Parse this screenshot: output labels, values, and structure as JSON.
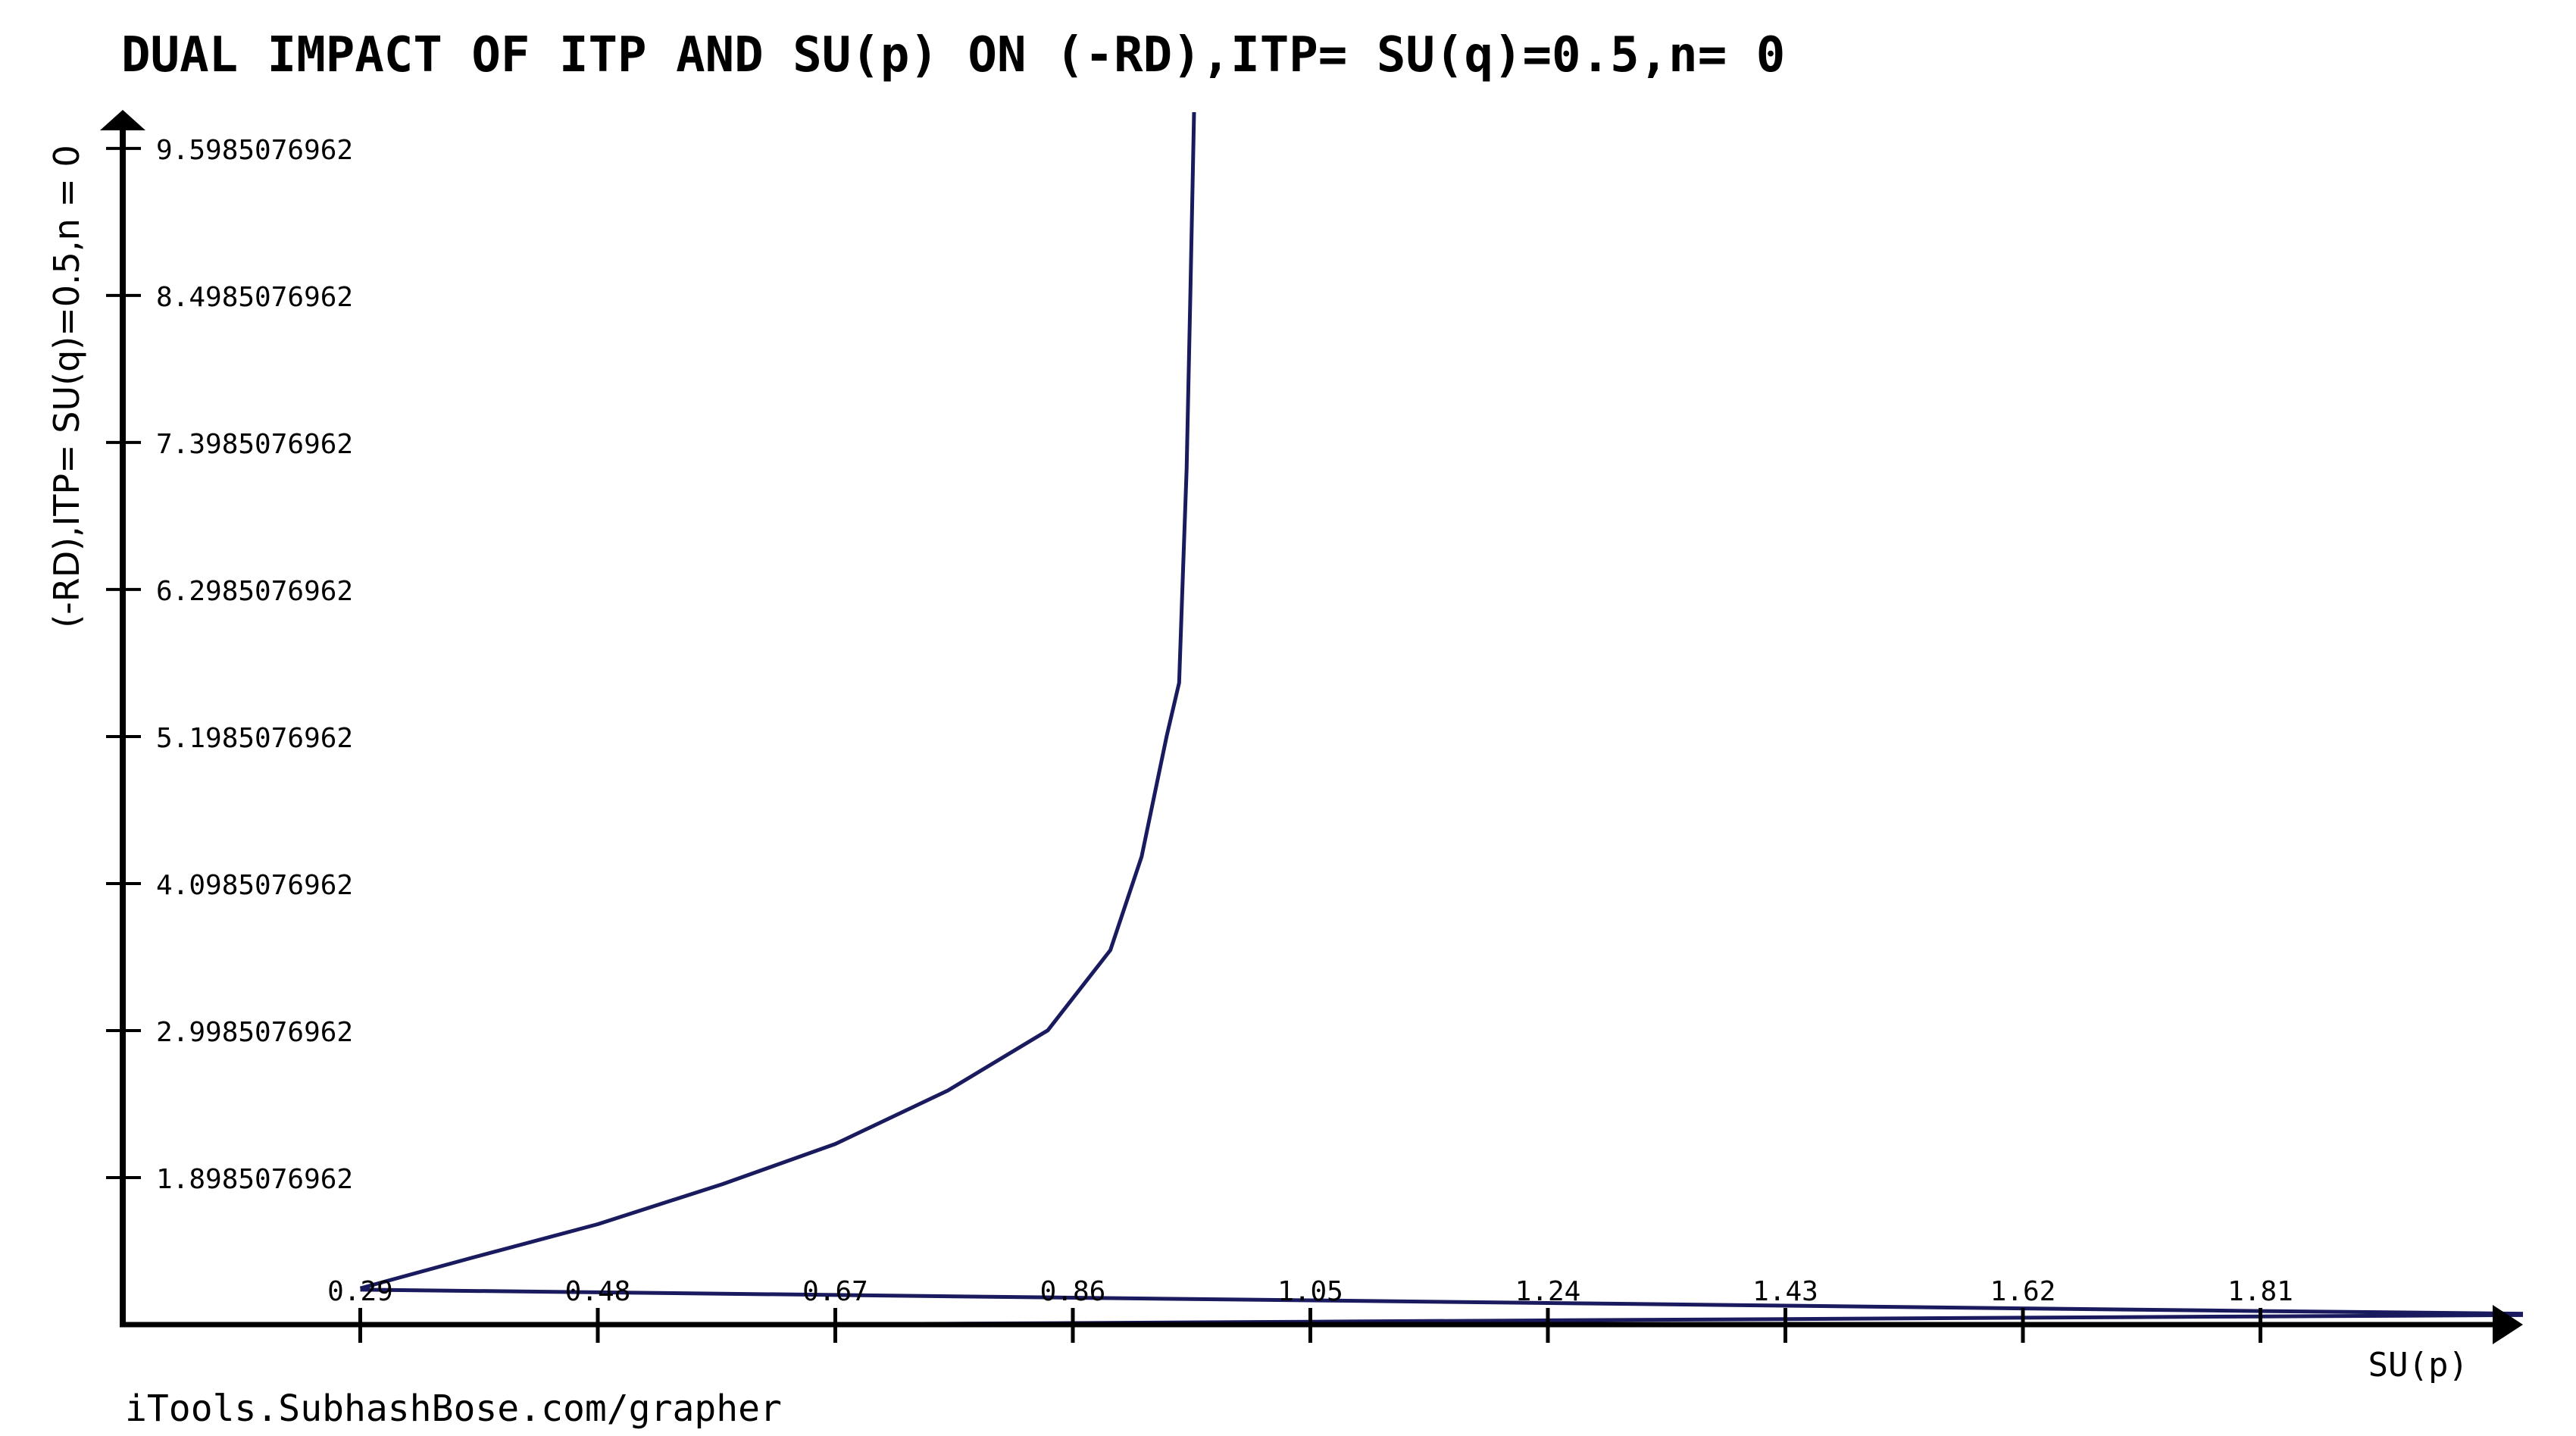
{
  "chart_data": {
    "type": "line",
    "title": "DUAL IMPACT OF ITP AND SU(p) ON (-RD),ITP= SU(q)=0.5,n= 0",
    "xlabel": "SU(p)",
    "ylabel": "(-RD),ITP= SU(q)=0.5,n = 0",
    "watermark": "iTools.SubhashBose.com/grapher",
    "x_ticks": [
      "0.29",
      "0.48",
      "0.67",
      "0.86",
      "1.05",
      "1.24",
      "1.43",
      "1.62",
      "1.81"
    ],
    "y_ticks": [
      "9.5985076962",
      "8.4985076962",
      "7.3985076962",
      "6.2985076962",
      "5.1985076962",
      "4.0985076962",
      "2.9985076962",
      "1.8985076962"
    ],
    "xlim": [
      0.1,
      2.02
    ],
    "ylim": [
      0.7985076962,
      9.87
    ],
    "grid": false,
    "series": [
      {
        "color": "#1a1a5e",
        "x": [
          0.29,
          0.38,
          0.48,
          0.58,
          0.67,
          0.76,
          0.84,
          0.89,
          0.915,
          0.935,
          0.945,
          0.948,
          0.951,
          0.954,
          0.957
        ],
        "y": [
          1.07,
          1.3,
          1.55,
          1.85,
          2.15,
          2.55,
          3.0,
          3.6,
          4.3,
          5.2,
          5.6,
          6.4,
          7.2,
          8.5,
          9.87
        ]
      },
      {
        "color": "#1a1a5e",
        "x": [
          0.29,
          0.48,
          0.67,
          0.86,
          1.05,
          1.24,
          1.43,
          1.62,
          1.81,
          2.02
        ],
        "y": [
          1.06,
          1.04,
          1.02,
          1.0,
          0.98,
          0.96,
          0.94,
          0.92,
          0.9,
          0.88
        ]
      },
      {
        "color": "#1a1a5e",
        "x": [
          0.58,
          0.76,
          0.86,
          1.05,
          1.24,
          1.43,
          1.62,
          1.81,
          2.02
        ],
        "y": [
          0.8,
          0.805,
          0.81,
          0.82,
          0.83,
          0.84,
          0.85,
          0.86,
          0.87
        ]
      }
    ]
  }
}
